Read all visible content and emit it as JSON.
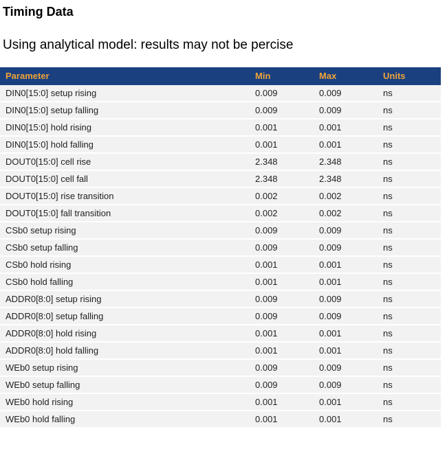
{
  "header": {
    "title": "Timing Data",
    "subtitle": "Using analytical model: results may not be percise"
  },
  "table": {
    "columns": [
      "Parameter",
      "Min",
      "Max",
      "Units"
    ],
    "rows": [
      {
        "parameter": "DIN0[15:0] setup rising",
        "min": "0.009",
        "max": "0.009",
        "units": "ns"
      },
      {
        "parameter": "DIN0[15:0] setup falling",
        "min": "0.009",
        "max": "0.009",
        "units": "ns"
      },
      {
        "parameter": "DIN0[15:0] hold rising",
        "min": "0.001",
        "max": "0.001",
        "units": "ns"
      },
      {
        "parameter": "DIN0[15:0] hold falling",
        "min": "0.001",
        "max": "0.001",
        "units": "ns"
      },
      {
        "parameter": "DOUT0[15:0] cell rise",
        "min": "2.348",
        "max": "2.348",
        "units": "ns"
      },
      {
        "parameter": "DOUT0[15:0] cell fall",
        "min": "2.348",
        "max": "2.348",
        "units": "ns"
      },
      {
        "parameter": "DOUT0[15:0] rise transition",
        "min": "0.002",
        "max": "0.002",
        "units": "ns"
      },
      {
        "parameter": "DOUT0[15:0] fall transition",
        "min": "0.002",
        "max": "0.002",
        "units": "ns"
      },
      {
        "parameter": "CSb0 setup rising",
        "min": "0.009",
        "max": "0.009",
        "units": "ns"
      },
      {
        "parameter": "CSb0 setup falling",
        "min": "0.009",
        "max": "0.009",
        "units": "ns"
      },
      {
        "parameter": "CSb0 hold rising",
        "min": "0.001",
        "max": "0.001",
        "units": "ns"
      },
      {
        "parameter": "CSb0 hold falling",
        "min": "0.001",
        "max": "0.001",
        "units": "ns"
      },
      {
        "parameter": "ADDR0[8:0] setup rising",
        "min": "0.009",
        "max": "0.009",
        "units": "ns"
      },
      {
        "parameter": "ADDR0[8:0] setup falling",
        "min": "0.009",
        "max": "0.009",
        "units": "ns"
      },
      {
        "parameter": "ADDR0[8:0] hold rising",
        "min": "0.001",
        "max": "0.001",
        "units": "ns"
      },
      {
        "parameter": "ADDR0[8:0] hold falling",
        "min": "0.001",
        "max": "0.001",
        "units": "ns"
      },
      {
        "parameter": "WEb0 setup rising",
        "min": "0.009",
        "max": "0.009",
        "units": "ns"
      },
      {
        "parameter": "WEb0 setup falling",
        "min": "0.009",
        "max": "0.009",
        "units": "ns"
      },
      {
        "parameter": "WEb0 hold rising",
        "min": "0.001",
        "max": "0.001",
        "units": "ns"
      },
      {
        "parameter": "WEb0 hold falling",
        "min": "0.001",
        "max": "0.001",
        "units": "ns"
      }
    ]
  },
  "colors": {
    "header_bg": "#1a4080",
    "header_text": "#efa338",
    "row_bg": "#f2f2f2",
    "row_separator": "#ffffff",
    "body_text": "#1f1f1f"
  }
}
